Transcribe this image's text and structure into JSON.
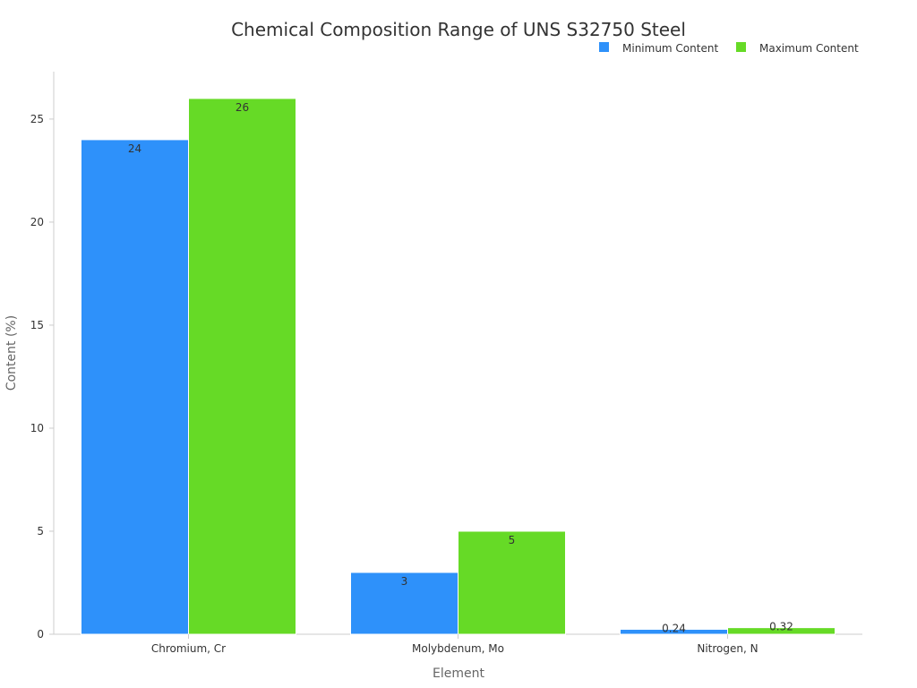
{
  "chart_data": {
    "type": "bar",
    "title": "Chemical Composition Range of UNS S32750 Steel",
    "xlabel": "Element",
    "ylabel": "Content (%)",
    "categories": [
      "Chromium, Cr",
      "Molybdenum, Mo",
      "Nitrogen, N"
    ],
    "series": [
      {
        "name": "Minimum Content",
        "color": "#2e91fa",
        "values": [
          24,
          3,
          0.24
        ],
        "labels": [
          "24",
          "3",
          "0.24"
        ]
      },
      {
        "name": "Maximum Content",
        "color": "#66da26",
        "values": [
          26,
          5,
          0.32
        ],
        "labels": [
          "26",
          "5",
          "0.32"
        ]
      }
    ],
    "ylim": [
      0,
      27.3
    ],
    "yticks": [
      0,
      5,
      10,
      15,
      20,
      25
    ],
    "legend_position": "top-right",
    "grid": false
  }
}
